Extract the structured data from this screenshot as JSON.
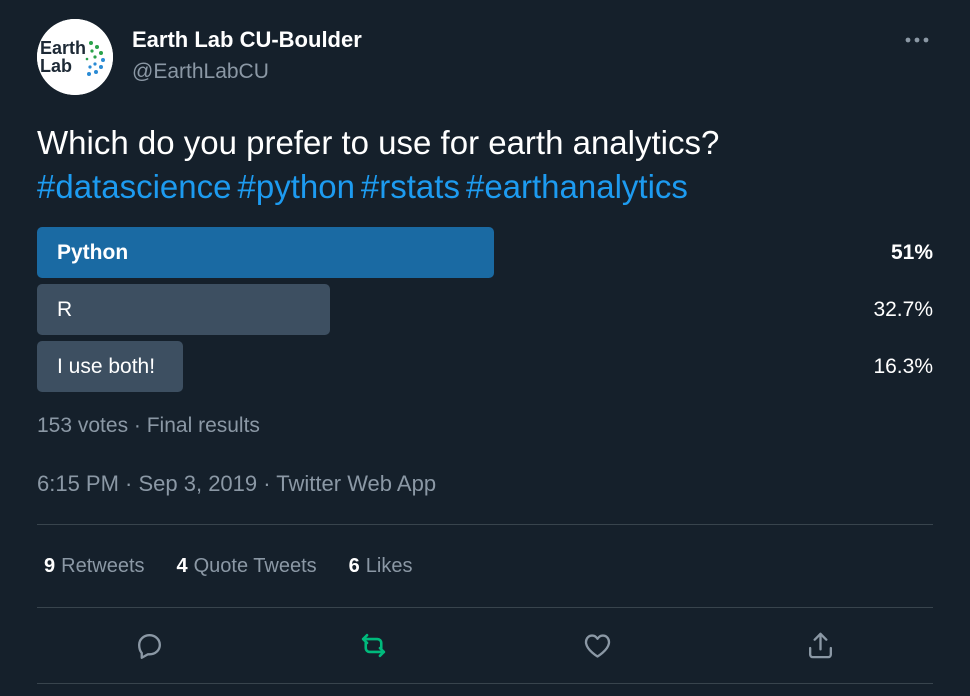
{
  "author": {
    "display_name": "Earth Lab CU-Boulder",
    "handle": "@EarthLabCU",
    "avatar_text_line1": "Earth",
    "avatar_text_line2": "Lab"
  },
  "tweet": {
    "text": "Which do you prefer to use for earth analytics?",
    "hashtags": [
      "#datascience",
      "#python",
      "#rstats",
      "#earthanalytics"
    ]
  },
  "poll": {
    "options": [
      {
        "label": "Python",
        "percent_text": "51%",
        "percent": 51,
        "winner": true
      },
      {
        "label": "R",
        "percent_text": "32.7%",
        "percent": 32.7,
        "winner": false
      },
      {
        "label": "I use both!",
        "percent_text": "16.3%",
        "percent": 16.3,
        "winner": false
      }
    ],
    "summary": "153 votes · Final results"
  },
  "timestamp": "6:15 PM · Sep 3, 2019 · Twitter Web App",
  "stats": {
    "retweets_count": "9",
    "retweets_label": "Retweets",
    "quotes_count": "4",
    "quotes_label": "Quote Tweets",
    "likes_count": "6",
    "likes_label": "Likes"
  },
  "colors": {
    "background": "#15202b",
    "accent": "#1d9bf0",
    "winner_bar": "#1a6aa3",
    "option_bar": "#3d4f61",
    "retweet_green": "#00ba7c",
    "muted_text": "#8b98a5"
  }
}
